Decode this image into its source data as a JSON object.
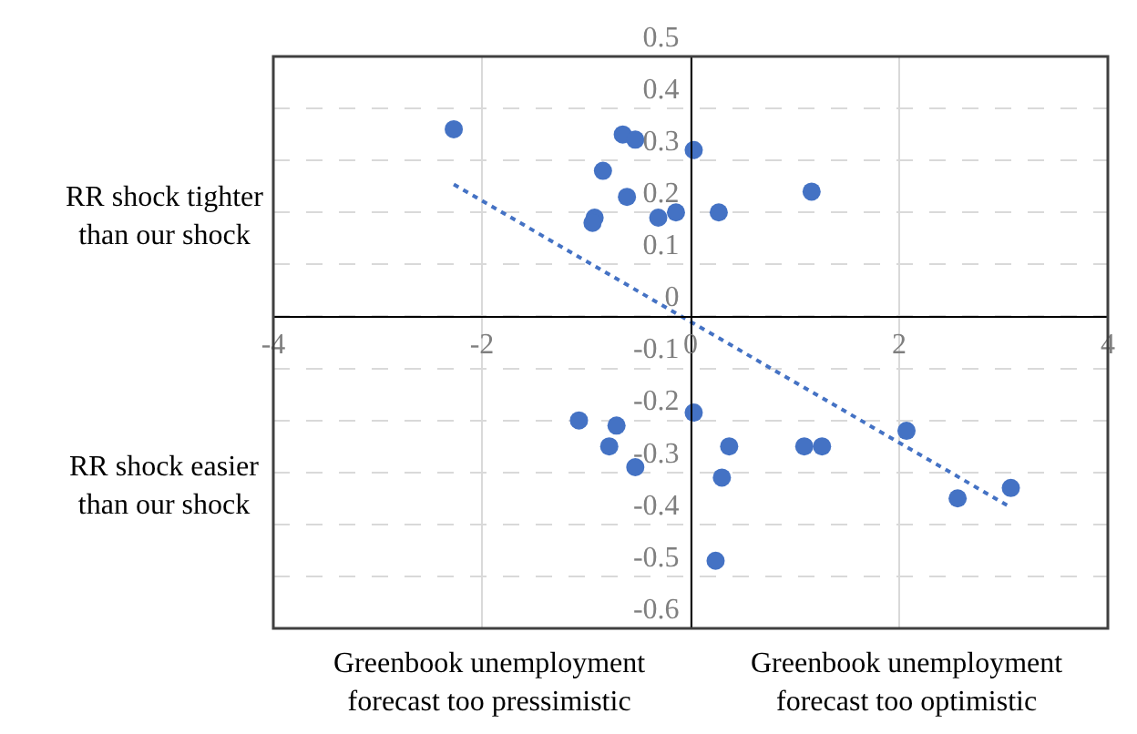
{
  "chart_data": {
    "type": "scatter",
    "xlim": [
      -4,
      4
    ],
    "xticks": [
      -4,
      -2,
      0,
      2,
      4
    ],
    "ylim": [
      -0.6,
      0.5
    ],
    "yticks": [
      -0.6,
      -0.5,
      -0.4,
      -0.3,
      -0.2,
      -0.1,
      0,
      0.1,
      0.2,
      0.3,
      0.4,
      0.5
    ],
    "grid": true,
    "marker": "circle",
    "series": [
      {
        "color": "#4472c4",
        "x": [
          -2.27,
          -0.65,
          -0.53,
          0.03,
          -0.84,
          -0.61,
          -0.92,
          -0.94,
          -0.31,
          -0.14,
          0.27,
          1.16,
          -1.07,
          -0.71,
          -0.78,
          -0.53,
          0.03,
          0.37,
          0.3,
          1.09,
          1.26,
          2.07,
          2.56,
          3.07,
          0.24
        ],
        "values": [
          0.36,
          0.35,
          0.34,
          0.32,
          0.28,
          0.23,
          0.19,
          0.18,
          0.19,
          0.2,
          0.2,
          0.24,
          -0.2,
          -0.21,
          -0.25,
          -0.29,
          -0.185,
          -0.25,
          -0.31,
          -0.25,
          -0.25,
          -0.22,
          -0.35,
          -0.33,
          -0.47
        ]
      },
      {
        "type": "line",
        "color": "#4472c4",
        "line_style": "dotted",
        "marker": "none",
        "x": [
          -2.27,
          3.05
        ],
        "values": [
          0.254,
          -0.365
        ]
      }
    ],
    "annotations": [
      "RR shock tighter\nthan our shock",
      "RR shock easier\nthan our shock",
      "Greenbook unemployment\nforecast too pressimistic",
      "Greenbook unemployment\nforecast too optimistic"
    ]
  }
}
